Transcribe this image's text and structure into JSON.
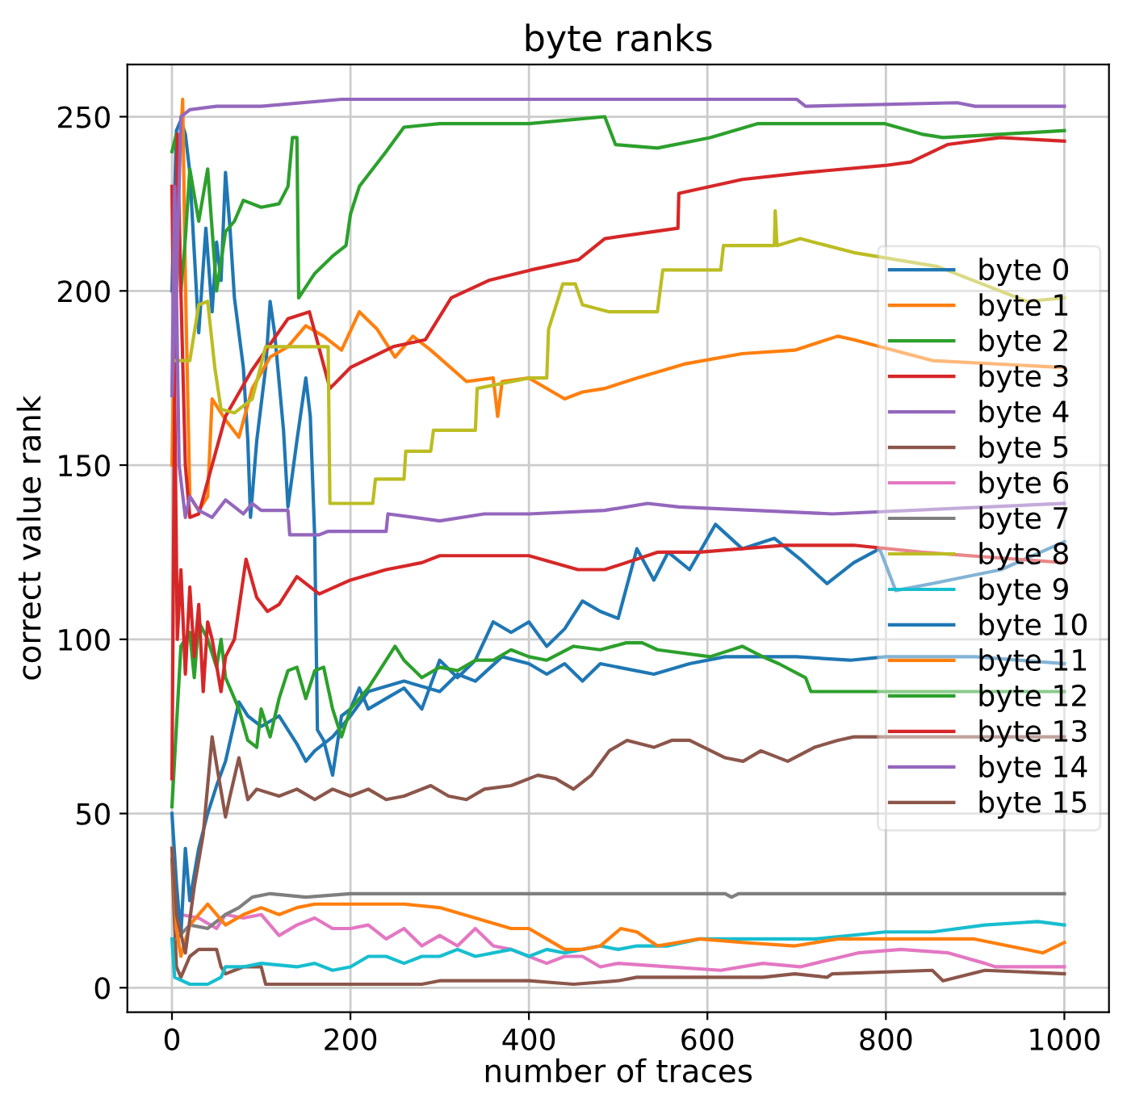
{
  "chart_data": {
    "type": "line",
    "title": "byte ranks",
    "xlabel": "number of traces",
    "ylabel": "correct value rank",
    "xlim": [
      -50,
      1050
    ],
    "ylim": [
      -7,
      265
    ],
    "xticks": [
      0,
      200,
      400,
      600,
      800,
      1000
    ],
    "yticks": [
      0,
      50,
      100,
      150,
      200,
      250
    ],
    "grid": true,
    "legend": "right",
    "line_style": "solid",
    "marker": "none",
    "series": [
      {
        "name": "byte 0",
        "color": "#1f77b4",
        "x": [
          0,
          5,
          10,
          15,
          20,
          25,
          30,
          38,
          45,
          50,
          55,
          60,
          65,
          70,
          80,
          85,
          88,
          95,
          105,
          110,
          115,
          125,
          130,
          140,
          150,
          155,
          160,
          163,
          170,
          180,
          190,
          200,
          210,
          220,
          240,
          260,
          280,
          300,
          320,
          340,
          360,
          380,
          400,
          420,
          440,
          460,
          480,
          500,
          521,
          540,
          556,
          580,
          609,
          639,
          675,
          704,
          734,
          764,
          793,
          811,
          852,
          929,
          1000
        ],
        "values": [
          200,
          246,
          249,
          245,
          234,
          211,
          188,
          218,
          194,
          214,
          203,
          234,
          218,
          198,
          178,
          157,
          135,
          157,
          178,
          197,
          188,
          160,
          138,
          157,
          175,
          164,
          129,
          74,
          71,
          61,
          78,
          80,
          86,
          80,
          83,
          86,
          80,
          94,
          89,
          94,
          105,
          102,
          105,
          98,
          103,
          111,
          108,
          106,
          126,
          117,
          125,
          120,
          133,
          126,
          129,
          123,
          116,
          122,
          126,
          114,
          116,
          120,
          128
        ]
      },
      {
        "name": "byte 1",
        "color": "#ff7f0e",
        "x": [
          0,
          5,
          12,
          15,
          20,
          30,
          40,
          45,
          60,
          75,
          90,
          110,
          130,
          150,
          170,
          190,
          210,
          230,
          250,
          270,
          290,
          330,
          360,
          365,
          370,
          400,
          440,
          460,
          485,
          521,
          574,
          639,
          698,
          746,
          764,
          852,
          1000
        ],
        "values": [
          150,
          220,
          255,
          203,
          141,
          137,
          141,
          169,
          163,
          158,
          172,
          181,
          184,
          190,
          187,
          183,
          194,
          189,
          181,
          187,
          183,
          174,
          175,
          164,
          174,
          175,
          169,
          171,
          172,
          175,
          179,
          182,
          183,
          187,
          186,
          180,
          178
        ]
      },
      {
        "name": "byte 2",
        "color": "#2ca02c",
        "x": [
          0,
          5,
          10,
          15,
          20,
          30,
          40,
          50,
          60,
          70,
          80,
          100,
          120,
          130,
          135,
          140,
          142,
          160,
          180,
          195,
          200,
          210,
          225,
          240,
          260,
          300,
          400,
          485,
          497,
          544,
          603,
          656,
          710,
          799,
          840,
          864,
          1000
        ],
        "values": [
          240,
          245,
          200,
          215,
          235,
          220,
          235,
          200,
          217,
          220,
          226,
          224,
          225,
          230,
          244,
          244,
          198,
          205,
          210,
          213,
          222,
          230,
          235,
          240,
          247,
          248,
          248,
          250,
          242,
          241,
          244,
          248,
          248,
          248,
          245,
          244,
          246
        ]
      },
      {
        "name": "byte 3",
        "color": "#d62728",
        "x": [
          0,
          3,
          6,
          10,
          15,
          20,
          30,
          60,
          89,
          130,
          154,
          177,
          200,
          248,
          284,
          313,
          355,
          402,
          456,
          485,
          567,
          568,
          639,
          710,
          799,
          828,
          869,
          928,
          1000
        ],
        "values": [
          230,
          170,
          245,
          200,
          150,
          135,
          136,
          164,
          177,
          192,
          194,
          172,
          178,
          184,
          186,
          198,
          203,
          206,
          209,
          215,
          218,
          228,
          232,
          234,
          236,
          237,
          242,
          244,
          243
        ]
      },
      {
        "name": "byte 4",
        "color": "#9467bd",
        "x": [
          0,
          5,
          10,
          20,
          50,
          100,
          190,
          400,
          700,
          710,
          880,
          900,
          1000
        ],
        "values": [
          170,
          200,
          250,
          252,
          253,
          253,
          255,
          255,
          255,
          253,
          254,
          253,
          253
        ]
      },
      {
        "name": "byte 5",
        "color": "#8c564b",
        "x": [
          0,
          5,
          10,
          20,
          30,
          50,
          55,
          60,
          80,
          100,
          105,
          200,
          280,
          300,
          400,
          450,
          500,
          521,
          662,
          698,
          734,
          740,
          852,
          864,
          911,
          1000
        ],
        "values": [
          37,
          6,
          3,
          9,
          11,
          11,
          6,
          4,
          6,
          6,
          1,
          1,
          1,
          2,
          2,
          1,
          2,
          3,
          3,
          4,
          3,
          4,
          5,
          2,
          5,
          4
        ]
      },
      {
        "name": "byte 6",
        "color": "#e377c2",
        "x": [
          5,
          10,
          30,
          50,
          60,
          80,
          100,
          120,
          140,
          160,
          180,
          200,
          220,
          240,
          260,
          280,
          300,
          320,
          340,
          360,
          380,
          400,
          420,
          440,
          460,
          480,
          500,
          556,
          615,
          662,
          704,
          769,
          817,
          870,
          911,
          923,
          1000
        ],
        "values": [
          17,
          21,
          20,
          17,
          21,
          20,
          21,
          15,
          18,
          20,
          17,
          17,
          18,
          14,
          17,
          12,
          15,
          12,
          17,
          12,
          11,
          9,
          7,
          9,
          9,
          6,
          7,
          6,
          5,
          7,
          6,
          10,
          11,
          10,
          7,
          6,
          6
        ]
      },
      {
        "name": "byte 7",
        "color": "#7f7f7f",
        "x": [
          5,
          20,
          40,
          60,
          75,
          90,
          110,
          150,
          200,
          300,
          500,
          620,
          627,
          635,
          1000
        ],
        "values": [
          14,
          18,
          17,
          21,
          23,
          26,
          27,
          26,
          27,
          27,
          27,
          27,
          26,
          27,
          27
        ]
      },
      {
        "name": "byte 8",
        "color": "#bcbd22",
        "x": [
          5,
          20,
          30,
          40,
          48,
          55,
          70,
          90,
          105,
          175,
          177,
          225,
          228,
          260,
          262,
          290,
          293,
          340,
          342,
          400,
          420,
          422,
          438,
          452,
          460,
          490,
          544,
          550,
          615,
          618,
          675,
          676,
          678,
          704,
          764,
          858,
          958,
          1000
        ],
        "values": [
          180,
          180,
          196,
          197,
          178,
          166,
          165,
          169,
          184,
          184,
          139,
          139,
          146,
          146,
          154,
          154,
          160,
          160,
          172,
          175,
          175,
          189,
          202,
          202,
          196,
          194,
          194,
          206,
          206,
          213,
          213,
          223,
          213,
          215,
          211,
          207,
          197,
          198
        ]
      },
      {
        "name": "byte 9",
        "color": "#17becf",
        "x": [
          0,
          3,
          20,
          40,
          55,
          60,
          80,
          100,
          140,
          160,
          180,
          200,
          220,
          240,
          260,
          280,
          300,
          320,
          340,
          380,
          400,
          420,
          440,
          460,
          480,
          500,
          521,
          556,
          591,
          662,
          722,
          799,
          852,
          911,
          970,
          1000
        ],
        "values": [
          14,
          3,
          1,
          1,
          3,
          6,
          6,
          7,
          6,
          7,
          5,
          6,
          9,
          9,
          7,
          9,
          9,
          11,
          9,
          11,
          9,
          11,
          10,
          11,
          12,
          11,
          12,
          12,
          14,
          14,
          14,
          16,
          16,
          18,
          19,
          18
        ]
      },
      {
        "name": "byte 10",
        "color": "#1f77b4",
        "x": [
          0,
          5,
          10,
          15,
          20,
          30,
          40,
          50,
          60,
          75,
          85,
          100,
          120,
          140,
          150,
          160,
          180,
          200,
          220,
          260,
          300,
          320,
          340,
          370,
          400,
          420,
          440,
          460,
          480,
          500,
          540,
          580,
          620,
          700,
          760,
          800,
          900,
          1000
        ],
        "values": [
          50,
          30,
          15,
          40,
          25,
          40,
          50,
          58,
          65,
          82,
          78,
          75,
          78,
          70,
          65,
          68,
          72,
          78,
          85,
          88,
          85,
          90,
          88,
          95,
          93,
          90,
          93,
          88,
          93,
          92,
          90,
          93,
          95,
          95,
          94,
          95,
          95,
          93
        ]
      },
      {
        "name": "byte 11",
        "color": "#ff7f0e",
        "x": [
          0,
          5,
          10,
          20,
          30,
          40,
          50,
          60,
          80,
          100,
          120,
          140,
          160,
          200,
          260,
          300,
          340,
          380,
          400,
          420,
          440,
          460,
          480,
          503,
          521,
          544,
          591,
          639,
          698,
          746,
          799,
          899,
          976,
          1000
        ],
        "values": [
          40,
          17,
          9,
          18,
          21,
          24,
          21,
          18,
          21,
          23,
          21,
          23,
          24,
          24,
          24,
          23,
          20,
          17,
          17,
          14,
          11,
          11,
          12,
          17,
          16,
          12,
          14,
          13,
          12,
          14,
          14,
          14,
          10,
          13
        ]
      },
      {
        "name": "byte 12",
        "color": "#2ca02c",
        "x": [
          0,
          5,
          10,
          20,
          25,
          30,
          40,
          50,
          55,
          60,
          75,
          85,
          95,
          100,
          110,
          120,
          130,
          140,
          150,
          160,
          170,
          180,
          190,
          200,
          220,
          240,
          250,
          260,
          280,
          300,
          320,
          340,
          360,
          380,
          400,
          420,
          450,
          480,
          509,
          527,
          544,
          603,
          639,
          662,
          680,
          710,
          716,
          764,
          852,
          1000
        ],
        "values": [
          52,
          75,
          98,
          102,
          89,
          105,
          100,
          92,
          100,
          89,
          80,
          71,
          69,
          80,
          72,
          83,
          91,
          92,
          83,
          91,
          92,
          80,
          72,
          80,
          86,
          94,
          98,
          94,
          89,
          92,
          91,
          94,
          94,
          97,
          95,
          94,
          98,
          97,
          99,
          99,
          97,
          95,
          98,
          95,
          93,
          89,
          85,
          85,
          85,
          85
        ]
      },
      {
        "name": "byte 13",
        "color": "#d62728",
        "x": [
          0,
          3,
          6,
          10,
          15,
          20,
          25,
          30,
          35,
          40,
          45,
          55,
          60,
          70,
          83,
          95,
          107,
          120,
          140,
          165,
          200,
          240,
          280,
          300,
          400,
          455,
          485,
          521,
          544,
          591,
          686,
          764,
          840,
          1000
        ],
        "values": [
          60,
          170,
          100,
          120,
          90,
          115,
          95,
          110,
          85,
          105,
          100,
          85,
          95,
          100,
          123,
          112,
          108,
          110,
          118,
          113,
          117,
          120,
          122,
          124,
          124,
          120,
          120,
          123,
          125,
          125,
          127,
          127,
          125,
          122
        ]
      },
      {
        "name": "byte 14",
        "color": "#9467bd",
        "x": [
          0,
          3,
          5,
          8,
          15,
          20,
          30,
          45,
          60,
          80,
          90,
          100,
          130,
          132,
          165,
          175,
          240,
          242,
          300,
          350,
          400,
          485,
          533,
          568,
          740,
          1000
        ],
        "values": [
          170,
          230,
          200,
          150,
          135,
          141,
          137,
          135,
          140,
          136,
          139,
          137,
          137,
          130,
          130,
          131,
          131,
          136,
          134,
          136,
          136,
          137,
          139,
          138,
          136,
          139
        ]
      },
      {
        "name": "byte 15",
        "color": "#8c564b",
        "x": [
          0,
          5,
          15,
          25,
          35,
          40,
          45,
          50,
          60,
          65,
          75,
          85,
          95,
          120,
          140,
          160,
          180,
          200,
          220,
          240,
          260,
          290,
          310,
          330,
          350,
          380,
          410,
          430,
          450,
          470,
          490,
          510,
          540,
          560,
          580,
          620,
          640,
          660,
          690,
          720,
          746,
          764,
          840,
          1000
        ],
        "values": [
          40,
          21,
          10,
          29,
          44,
          58,
          72,
          64,
          49,
          55,
          66,
          54,
          57,
          55,
          57,
          54,
          57,
          55,
          57,
          54,
          55,
          58,
          55,
          54,
          57,
          58,
          61,
          60,
          57,
          61,
          68,
          71,
          69,
          71,
          71,
          66,
          65,
          68,
          65,
          69,
          71,
          72,
          72,
          72
        ]
      }
    ]
  }
}
